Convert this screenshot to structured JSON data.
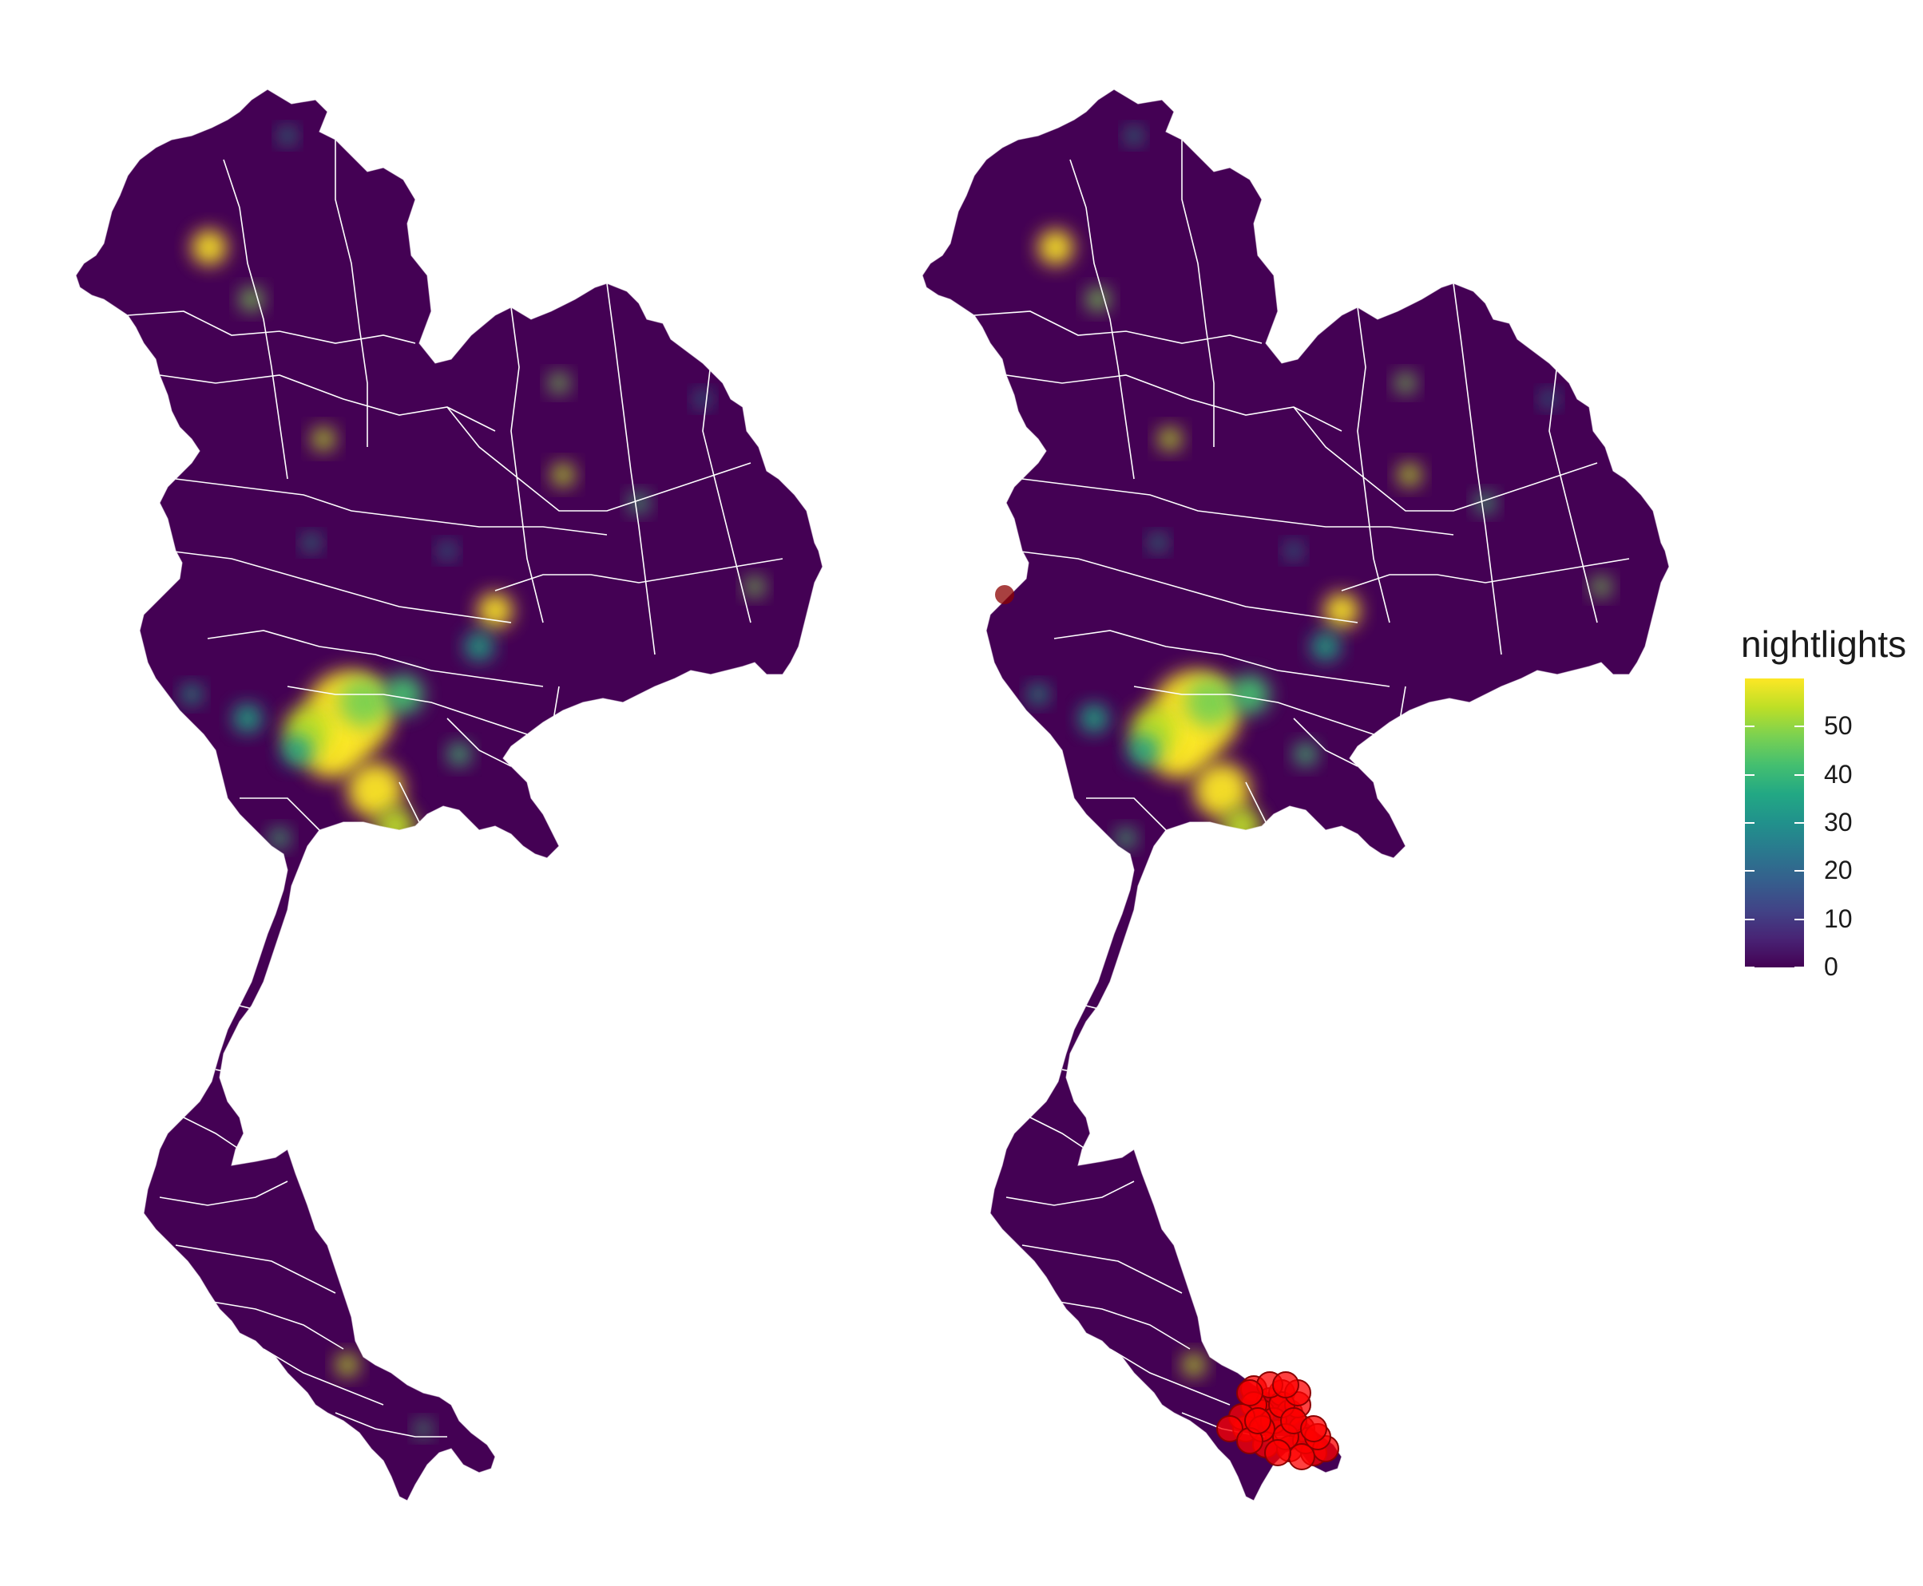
{
  "legend": {
    "title": "nightlights",
    "breaks": [
      {
        "label": "0",
        "value": 0
      },
      {
        "label": "10",
        "value": 10
      },
      {
        "label": "20",
        "value": 20
      },
      {
        "label": "30",
        "value": 30
      },
      {
        "label": "40",
        "value": 40
      },
      {
        "label": "50",
        "value": 50
      }
    ],
    "range": [
      0,
      60
    ],
    "palette": [
      "#440154",
      "#414487",
      "#2a788e",
      "#22a884",
      "#7ad151",
      "#fde725"
    ]
  },
  "colors": {
    "land_low": "#440154",
    "land_mid": "#31688e",
    "land_high": "#fde725",
    "borders": "#ffffff",
    "points_fill": "#ff0000",
    "points_stroke": "#8b0000"
  },
  "panels": [
    {
      "id": "left",
      "has_points": false
    },
    {
      "id": "right",
      "has_points": true
    }
  ]
}
